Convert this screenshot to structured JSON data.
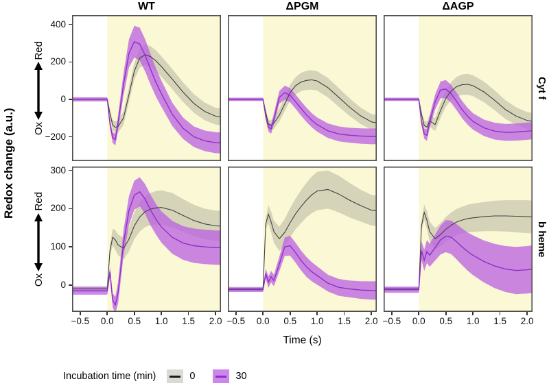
{
  "figure": {
    "ylabel": "Redox change (a.u.)",
    "xlabel": "Time (s)",
    "col_titles": [
      "WT",
      "ΔPGM",
      "ΔAGP"
    ],
    "row_labels": [
      "Cyt f",
      "b heme"
    ],
    "redox_arrow": {
      "top": "Red",
      "bottom": "Ox"
    }
  },
  "legend": {
    "title": "Incubation time (min)",
    "entries": [
      {
        "label": "0",
        "line_color": "#1a1a1a",
        "fill_color": "rgba(130,128,115,0.30)"
      },
      {
        "label": "30",
        "line_color": "#8f2fc9",
        "fill_color": "rgba(186,95,225,0.75)"
      }
    ]
  },
  "colors": {
    "line_0": "#3f3f3f",
    "ribbon_0": "rgba(130,128,115,0.30)",
    "line_30": "#8f2fc9",
    "ribbon_30": "rgba(186,95,225,0.75)",
    "illumination_bg": "#fbf8d6",
    "panel_bg": "#ffffff",
    "panel_border": "#4d4d4d"
  },
  "chart_data": {
    "type": "line",
    "title": "",
    "xlabel": "Time (s)",
    "ylabel": "Redox change (a.u.)",
    "legend_position": "bottom-left",
    "grid": false,
    "illumination_start": 0,
    "xlim": [
      -0.65,
      2.1
    ],
    "xtick_values": [
      -0.5,
      0.0,
      0.5,
      1.0,
      1.5,
      2.0
    ],
    "xtick_labels": [
      "−0.5",
      "0.0",
      "0.5",
      "1.0",
      "1.5",
      "2.0"
    ],
    "x": [
      -0.65,
      -0.1,
      0,
      0.05,
      0.1,
      0.15,
      0.2,
      0.3,
      0.4,
      0.5,
      0.6,
      0.7,
      0.8,
      0.9,
      1.0,
      1.2,
      1.4,
      1.6,
      1.8,
      2.0,
      2.1
    ],
    "rows": [
      {
        "label": "Cyt f",
        "ylim": [
          -330,
          450
        ],
        "ytick_values": [
          400,
          200,
          0,
          -200
        ],
        "ytick_labels": [
          "400",
          "200",
          "0",
          "−200"
        ]
      },
      {
        "label": "b heme",
        "ylim": [
          -70,
          310
        ],
        "ytick_values": [
          300,
          200,
          100,
          0
        ],
        "ytick_labels": [
          "300",
          "200",
          "100",
          "0"
        ]
      }
    ],
    "cols": [
      "WT",
      "ΔPGM",
      "ΔAGP"
    ],
    "panels": [
      {
        "genotype": "WT",
        "measurement": "Cyt f",
        "row": 0,
        "col": 0,
        "series": [
          {
            "name": "0",
            "mean": [
              0,
              0,
              0,
              -75,
              -138,
              -150,
              -145,
              -100,
              25,
              150,
              220,
              238,
              228,
              205,
              175,
              108,
              38,
              -22,
              -65,
              -90,
              -93
            ],
            "err": [
              12,
              12,
              12,
              18,
              28,
              32,
              33,
              36,
              40,
              45,
              50,
              55,
              56,
              56,
              55,
              54,
              52,
              50,
              47,
              45,
              45
            ]
          },
          {
            "name": "30",
            "mean": [
              0,
              0,
              0,
              -130,
              -205,
              -215,
              -125,
              80,
              245,
              308,
              295,
              235,
              160,
              90,
              30,
              -80,
              -155,
              -200,
              -222,
              -232,
              -233
            ],
            "err": [
              10,
              10,
              10,
              22,
              28,
              32,
              40,
              60,
              75,
              85,
              88,
              86,
              82,
              76,
              70,
              62,
              57,
              55,
              55,
              56,
              56
            ]
          }
        ]
      },
      {
        "genotype": "ΔPGM",
        "measurement": "Cyt f",
        "row": 0,
        "col": 1,
        "series": [
          {
            "name": "0",
            "mean": [
              0,
              0,
              0,
              -70,
              -132,
              -140,
              -128,
              -85,
              -25,
              35,
              72,
              92,
              101,
              104,
              98,
              62,
              10,
              -42,
              -88,
              -120,
              -126
            ],
            "err": [
              10,
              10,
              10,
              16,
              24,
              28,
              30,
              34,
              38,
              42,
              46,
              49,
              51,
              52,
              52,
              52,
              50,
              47,
              44,
              42,
              42
            ]
          },
          {
            "name": "30",
            "mean": [
              0,
              0,
              0,
              -90,
              -150,
              -158,
              -105,
              10,
              36,
              22,
              -12,
              -48,
              -82,
              -112,
              -135,
              -168,
              -185,
              -192,
              -196,
              -198,
              -198
            ],
            "err": [
              8,
              8,
              8,
              16,
              22,
              26,
              30,
              34,
              37,
              38,
              38,
              38,
              38,
              38,
              38,
              39,
              40,
              40,
              41,
              42,
              42
            ]
          }
        ]
      },
      {
        "genotype": "ΔAGP",
        "measurement": "Cyt f",
        "row": 0,
        "col": 2,
        "series": [
          {
            "name": "0",
            "mean": [
              0,
              0,
              0,
              -80,
              -140,
              -148,
              -115,
              -135,
              -60,
              5,
              45,
              68,
              78,
              80,
              73,
              40,
              -5,
              -55,
              -90,
              -113,
              -118
            ],
            "err": [
              10,
              10,
              10,
              17,
              25,
              29,
              31,
              35,
              39,
              44,
              48,
              52,
              55,
              56,
              56,
              55,
              53,
              50,
              47,
              45,
              45
            ]
          },
          {
            "name": "30",
            "mean": [
              0,
              0,
              0,
              -120,
              -185,
              -192,
              -120,
              -15,
              50,
              55,
              28,
              -12,
              -55,
              -90,
              -118,
              -152,
              -170,
              -177,
              -175,
              -170,
              -168
            ],
            "err": [
              8,
              8,
              8,
              18,
              26,
              30,
              34,
              40,
              45,
              48,
              48,
              47,
              46,
              45,
              44,
              44,
              45,
              45,
              46,
              46,
              46
            ]
          }
        ]
      },
      {
        "genotype": "WT",
        "measurement": "b heme",
        "row": 1,
        "col": 0,
        "series": [
          {
            "name": "0",
            "mean": [
              -10,
              -10,
              -10,
              90,
              125,
              118,
              105,
              96,
              120,
              155,
              178,
              192,
              199,
              202,
              203,
              196,
              182,
              169,
              160,
              155,
              154
            ],
            "err": [
              8,
              8,
              8,
              14,
              22,
              26,
              27,
              29,
              32,
              35,
              38,
              40,
              42,
              44,
              45,
              45,
              43,
              41,
              40,
              40,
              40
            ]
          },
          {
            "name": "30",
            "mean": [
              -15,
              -15,
              -15,
              35,
              -40,
              -52,
              -20,
              110,
              195,
              235,
              244,
              225,
              196,
              172,
              152,
              125,
              110,
              103,
              100,
              98,
              98
            ],
            "err": [
              10,
              10,
              10,
              14,
              18,
              22,
              28,
              34,
              38,
              38,
              38,
              39,
              40,
              40,
              41,
              43,
              44,
              45,
              45,
              45,
              45
            ]
          }
        ]
      },
      {
        "genotype": "ΔPGM",
        "measurement": "b heme",
        "row": 1,
        "col": 1,
        "series": [
          {
            "name": "0",
            "mean": [
              -10,
              -10,
              -10,
              160,
              185,
              165,
              140,
              121,
              138,
              163,
              186,
              205,
              222,
              236,
              246,
              250,
              238,
              222,
              208,
              196,
              194
            ],
            "err": [
              6,
              6,
              6,
              14,
              24,
              27,
              29,
              32,
              35,
              38,
              40,
              43,
              45,
              48,
              50,
              50,
              48,
              45,
              42,
              40,
              40
            ]
          },
          {
            "name": "30",
            "mean": [
              -12,
              -12,
              -12,
              30,
              8,
              22,
              12,
              55,
              100,
              103,
              85,
              65,
              48,
              35,
              25,
              5,
              -6,
              -10,
              -13,
              -14,
              -14
            ],
            "err": [
              6,
              6,
              6,
              13,
              15,
              15,
              15,
              19,
              24,
              26,
              26,
              26,
              26,
              25,
              24,
              22,
              22,
              22,
              23,
              24,
              24
            ]
          }
        ]
      },
      {
        "genotype": "ΔAGP",
        "measurement": "b heme",
        "row": 1,
        "col": 2,
        "series": [
          {
            "name": "0",
            "mean": [
              -10,
              -10,
              -10,
              155,
              190,
              170,
              140,
              121,
              132,
              146,
              157,
              165,
              170,
              174,
              176,
              179,
              181,
              181,
              180,
              179,
              178
            ],
            "err": [
              6,
              6,
              6,
              13,
              20,
              24,
              26,
              28,
              30,
              32,
              33,
              34,
              35,
              36,
              37,
              38,
              40,
              41,
              42,
              43,
              43
            ]
          },
          {
            "name": "30",
            "mean": [
              -12,
              -12,
              -12,
              90,
              65,
              88,
              78,
              98,
              118,
              128,
              125,
              113,
              100,
              88,
              78,
              62,
              50,
              42,
              38,
              40,
              42
            ],
            "err": [
              8,
              8,
              8,
              24,
              28,
              30,
              30,
              34,
              38,
              42,
              44,
              46,
              48,
              50,
              52,
              55,
              58,
              60,
              62,
              62,
              62
            ]
          }
        ]
      }
    ]
  }
}
